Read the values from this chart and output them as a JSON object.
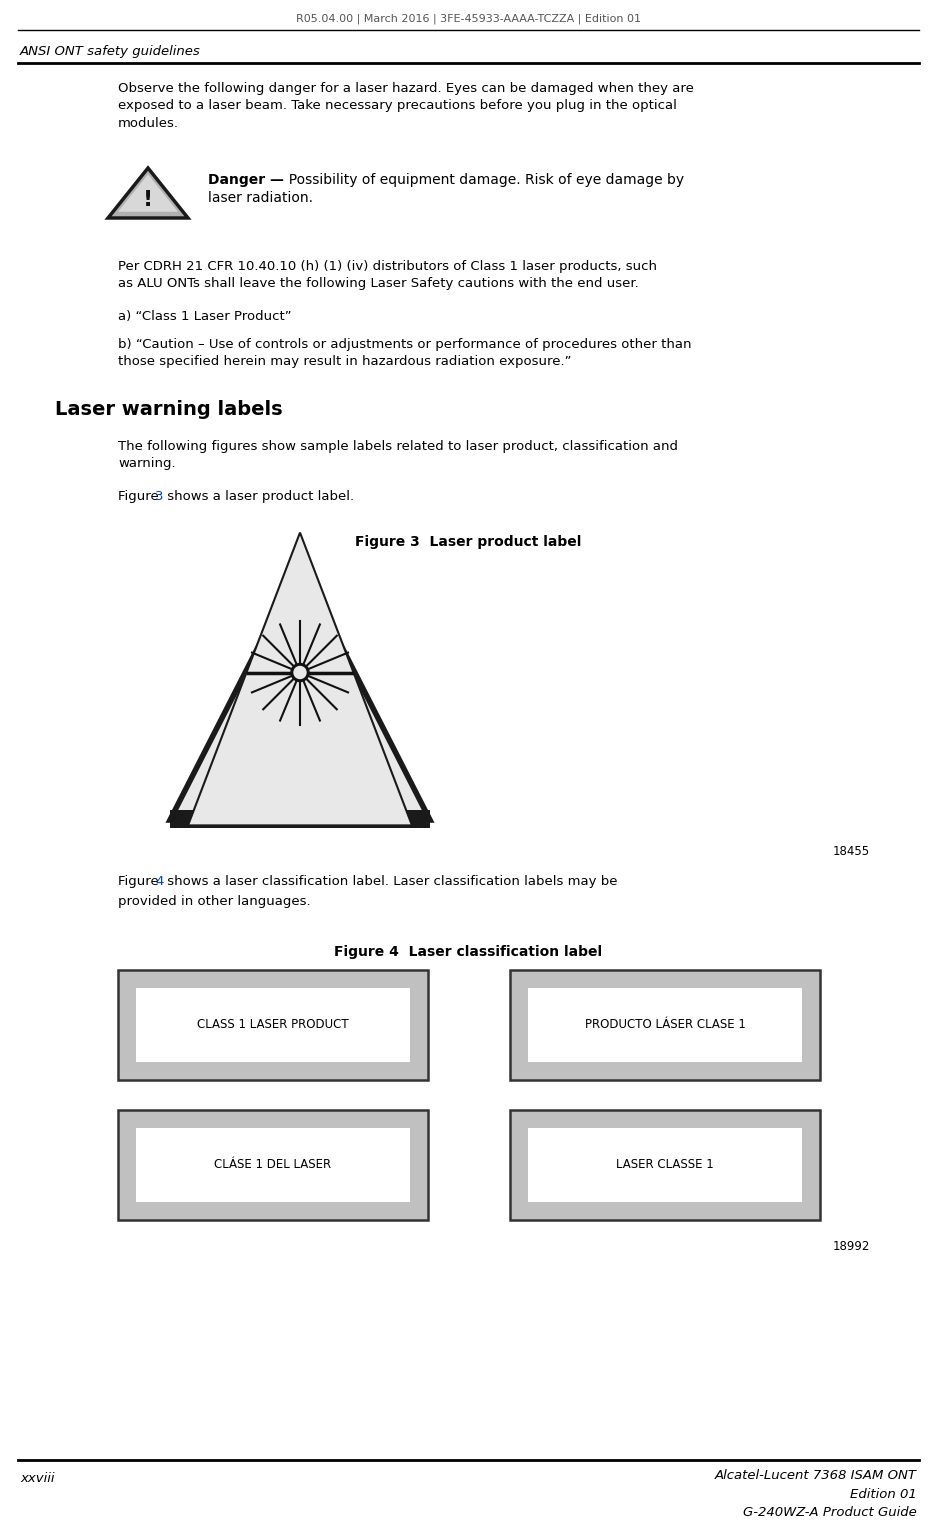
{
  "header_text": "R05.04.00 | March 2016 | 3FE-45933-AAAA-TCZZA | Edition 01",
  "section_title": "ANSI ONT safety guidelines",
  "footer_left": "xxviii",
  "footer_right_line1": "Alcatel-Lucent 7368 ISAM ONT",
  "footer_right_line2": "Edition 01",
  "footer_right_line3": "G-240WZ-A Product Guide",
  "body_text1": "Observe the following danger for a laser hazard. Eyes can be damaged when they are\nexposed to a laser beam. Take necessary precautions before you plug in the optical\nmodules.",
  "danger_bold": "Danger —",
  "danger_rest": "  Possibility of equipment damage. Risk of eye damage by\nlaser radiation.",
  "body_text2": "Per CDRH 21 CFR 10.40.10 (h) (1) (iv) distributors of Class 1 laser products, such\nas ALU ONTs shall leave the following Laser Safety cautions with the end user.",
  "item_a": "a) “Class 1 Laser Product”",
  "item_b": "b) “Caution – Use of controls or adjustments or performance of procedures other than\nthose specified herein may result in hazardous radiation exposure.”",
  "section_heading": "Laser warning labels",
  "body_text3": "The following figures show sample labels related to laser product, classification and\nwarning.",
  "fig3_caption": "Figure 3  Laser product label",
  "fig3_number": "18455",
  "fig4_caption": "Figure 4  Laser classification label",
  "fig4_number": "18992",
  "label1": "CLASS 1 LASER PRODUCT",
  "label2": "PRODUCTO LÁSER CLASE 1",
  "label3": "CLÁSE 1 DEL LASER",
  "label4": "LASER CLASSE 1",
  "bg_color": "#ffffff",
  "text_color": "#000000",
  "header_color": "#555555",
  "label_outer_bg": "#c0c0c0",
  "label_inner_bg": "#ffffff",
  "label_border_color": "#333333"
}
